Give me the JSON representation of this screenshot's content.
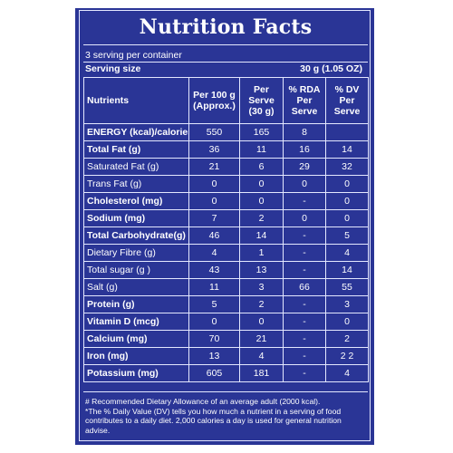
{
  "panel": {
    "title": "Nutrition Facts",
    "servings_per_container": "3 serving per container",
    "serving_size_label": "Serving size",
    "serving_size_value": "30 g (1.05 OZ)"
  },
  "table": {
    "headers": [
      "Nutrients",
      "Per 100 g (Approx.)",
      "Per Serve (30 g)",
      "% RDA Per Serve",
      "% DV Per Serve"
    ],
    "rows": [
      {
        "name": "ENERGY (kcal)/calories",
        "bold": true,
        "values": [
          "550",
          "165",
          "8",
          ""
        ]
      },
      {
        "name": "Total Fat (g)",
        "bold": true,
        "values": [
          "36",
          "11",
          "16",
          "14"
        ]
      },
      {
        "name": "Saturated Fat (g)",
        "bold": false,
        "values": [
          "21",
          "6",
          "29",
          "32"
        ]
      },
      {
        "name": "Trans Fat (g)",
        "bold": false,
        "values": [
          "0",
          "0",
          "0",
          "0"
        ]
      },
      {
        "name": "Cholesterol (mg)",
        "bold": true,
        "values": [
          "0",
          "0",
          "-",
          "0"
        ]
      },
      {
        "name": "Sodium (mg)",
        "bold": true,
        "values": [
          "7",
          "2",
          "0",
          "0"
        ]
      },
      {
        "name": "Total Carbohydrate(g)",
        "bold": true,
        "values": [
          "46",
          "14",
          "-",
          "5"
        ]
      },
      {
        "name": "Dietary Fibre (g)",
        "bold": false,
        "values": [
          "4",
          "1",
          "-",
          "4"
        ]
      },
      {
        "name": "Total sugar (g )",
        "bold": false,
        "values": [
          "43",
          "13",
          "-",
          "14"
        ]
      },
      {
        "name": "Salt (g)",
        "bold": false,
        "values": [
          "11",
          "3",
          "66",
          "55"
        ]
      },
      {
        "name": "Protein (g)",
        "bold": true,
        "values": [
          "5",
          "2",
          "-",
          "3"
        ]
      },
      {
        "name": "Vitamin D (mcg)",
        "bold": true,
        "values": [
          "0",
          "0",
          "-",
          "0"
        ]
      },
      {
        "name": "Calcium (mg)",
        "bold": true,
        "values": [
          "70",
          "21",
          "-",
          "2"
        ]
      },
      {
        "name": "Iron (mg)",
        "bold": true,
        "values": [
          "13",
          "4",
          "-",
          "2 2"
        ]
      },
      {
        "name": "Potassium (mg)",
        "bold": true,
        "values": [
          "605",
          "181",
          "-",
          "4"
        ]
      }
    ]
  },
  "footnotes": {
    "line1": "# Recommended Dietary Allowance of an average adult (2000 kcal).",
    "line2": "*The % Daily Value (DV) tells you how much a nutrient in a serving of food contributes to a daily diet. 2,000 calories a day is used for general nutrition advise."
  },
  "colors": {
    "background": "#2a3596",
    "text": "#ffffff",
    "rules": "#e4e8ff"
  }
}
